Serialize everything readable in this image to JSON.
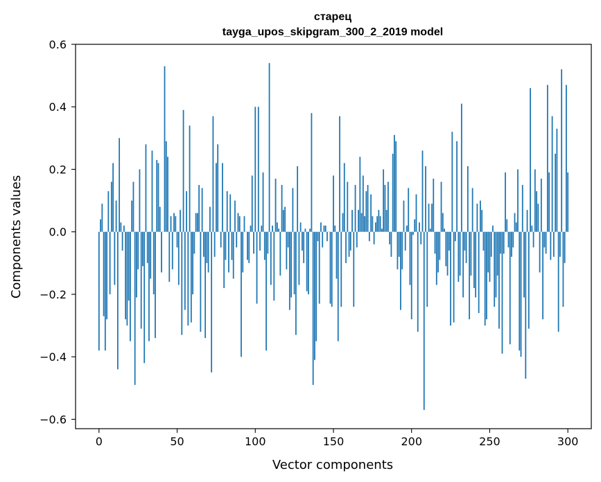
{
  "chart_data": {
    "type": "bar",
    "title_line1": "старец",
    "title_line2": "tayga_upos_skipgram_300_2_2019 model",
    "xlabel": "Vector components",
    "ylabel": "Components values",
    "xlim": [
      -15,
      315
    ],
    "ylim": [
      -0.63,
      0.6
    ],
    "xticks": [
      0,
      50,
      100,
      150,
      200,
      250,
      300
    ],
    "xtick_labels": [
      "0",
      "50",
      "100",
      "150",
      "200",
      "250",
      "300"
    ],
    "yticks": [
      -0.6,
      -0.4,
      -0.2,
      0.0,
      0.2,
      0.4,
      0.6
    ],
    "ytick_labels": [
      "−0.6",
      "−0.4",
      "−0.2",
      "0.0",
      "0.2",
      "0.4",
      "0.6"
    ],
    "bar_color": "#1f77b4",
    "grid": false,
    "values": [
      -0.38,
      0.04,
      0.09,
      -0.27,
      -0.38,
      -0.28,
      0.13,
      -0.2,
      0.16,
      0.22,
      -0.17,
      0.1,
      -0.44,
      0.3,
      0.03,
      -0.06,
      0.02,
      -0.28,
      -0.3,
      -0.22,
      -0.35,
      0.1,
      0.16,
      -0.49,
      -0.21,
      -0.12,
      0.2,
      -0.31,
      -0.11,
      -0.42,
      0.28,
      -0.1,
      -0.35,
      -0.15,
      0.26,
      -0.2,
      -0.34,
      0.23,
      0.22,
      0.08,
      -0.13,
      0.0,
      0.53,
      0.29,
      0.24,
      -0.16,
      0.05,
      -0.12,
      0.06,
      0.05,
      -0.05,
      -0.17,
      0.07,
      -0.33,
      0.39,
      -0.25,
      0.13,
      -0.3,
      0.34,
      -0.29,
      -0.2,
      -0.07,
      0.06,
      0.06,
      0.15,
      -0.32,
      0.14,
      -0.08,
      -0.34,
      -0.1,
      -0.13,
      0.08,
      -0.45,
      0.37,
      -0.08,
      0.22,
      0.28,
      0.0,
      -0.05,
      0.22,
      -0.18,
      -0.09,
      0.13,
      -0.13,
      0.12,
      -0.09,
      -0.15,
      0.1,
      -0.05,
      0.06,
      0.05,
      -0.4,
      -0.13,
      0.05,
      0.0,
      -0.09,
      -0.1,
      0.02,
      0.18,
      -0.07,
      0.4,
      -0.23,
      0.4,
      -0.06,
      0.02,
      0.19,
      -0.09,
      -0.38,
      -0.07,
      0.54,
      -0.17,
      0.02,
      -0.22,
      0.17,
      0.03,
      0.01,
      -0.14,
      0.15,
      0.07,
      0.08,
      -0.12,
      -0.05,
      -0.25,
      -0.21,
      0.14,
      -0.2,
      -0.33,
      0.21,
      -0.17,
      0.03,
      -0.06,
      -0.1,
      0.01,
      -0.19,
      -0.2,
      0.01,
      0.38,
      -0.49,
      -0.41,
      -0.35,
      -0.03,
      -0.23,
      0.03,
      -0.05,
      0.02,
      0.02,
      -0.03,
      0.0,
      -0.23,
      -0.24,
      0.18,
      0.02,
      -0.15,
      -0.35,
      0.37,
      -0.24,
      0.06,
      0.22,
      -0.1,
      0.16,
      -0.08,
      -0.06,
      0.07,
      -0.24,
      0.15,
      -0.05,
      0.07,
      0.24,
      0.06,
      0.18,
      0.05,
      0.13,
      0.15,
      -0.03,
      0.12,
      0.05,
      -0.04,
      0.03,
      0.05,
      0.07,
      0.05,
      0.01,
      0.2,
      0.15,
      0.07,
      0.16,
      -0.04,
      -0.08,
      0.25,
      0.31,
      0.29,
      -0.12,
      -0.08,
      -0.25,
      -0.12,
      0.1,
      -0.06,
      0.02,
      0.14,
      -0.17,
      -0.28,
      -0.01,
      0.04,
      0.12,
      -0.32,
      0.03,
      -0.04,
      0.26,
      -0.57,
      0.21,
      -0.24,
      0.09,
      0.01,
      0.09,
      0.17,
      -0.07,
      -0.17,
      -0.13,
      -0.09,
      0.16,
      0.06,
      0.01,
      -0.11,
      -0.14,
      -0.06,
      -0.3,
      0.32,
      -0.29,
      -0.03,
      0.29,
      -0.16,
      -0.14,
      0.41,
      -0.21,
      -0.06,
      -0.1,
      0.21,
      -0.28,
      -0.14,
      0.14,
      -0.18,
      -0.21,
      0.09,
      -0.26,
      0.1,
      0.07,
      -0.06,
      -0.3,
      -0.28,
      -0.13,
      -0.16,
      -0.08,
      0.02,
      -0.24,
      -0.21,
      -0.14,
      -0.31,
      -0.07,
      -0.39,
      -0.07,
      0.19,
      0.04,
      -0.05,
      -0.36,
      -0.08,
      -0.05,
      0.06,
      0.03,
      0.2,
      -0.38,
      -0.4,
      0.15,
      -0.21,
      -0.47,
      0.07,
      -0.31,
      0.46,
      0.02,
      -0.05,
      0.2,
      0.13,
      0.09,
      -0.13,
      0.17,
      -0.28,
      -0.05,
      -0.07,
      0.47,
      0.19,
      -0.09,
      0.37,
      -0.08,
      0.25,
      0.33,
      -0.32,
      -0.08,
      0.52,
      -0.24,
      -0.1,
      0.47,
      0.19
    ]
  }
}
